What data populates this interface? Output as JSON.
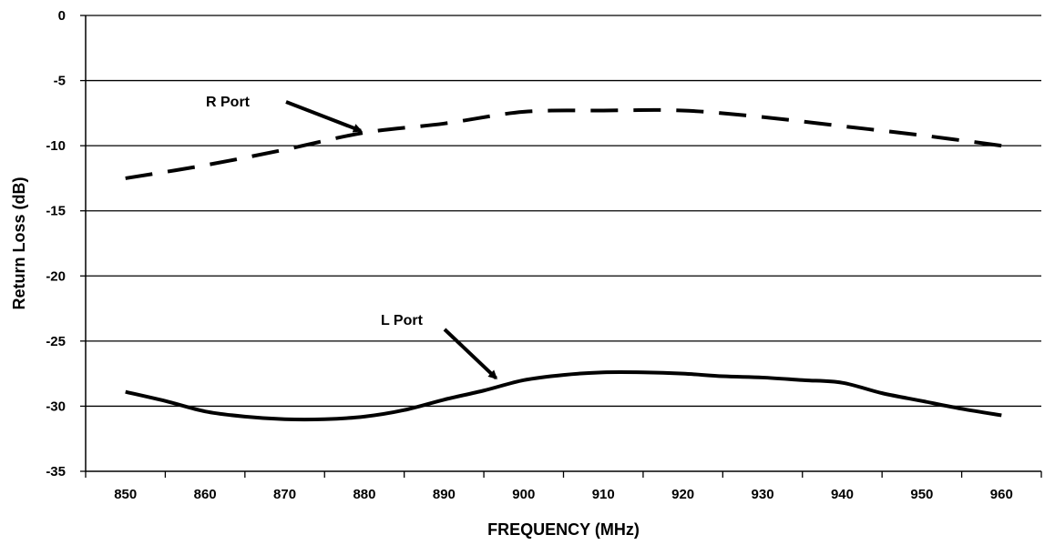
{
  "chart_data": {
    "type": "line",
    "title": "",
    "xlabel": "FREQUENCY (MHz)",
    "ylabel": "Return Loss (dB)",
    "xlim": [
      845,
      965
    ],
    "ylim": [
      -35,
      0
    ],
    "x_ticks": [
      850,
      860,
      870,
      880,
      890,
      900,
      910,
      920,
      930,
      940,
      950,
      960
    ],
    "y_ticks": [
      0,
      -5,
      -10,
      -15,
      -20,
      -25,
      -30,
      -35
    ],
    "grid": "horizontal",
    "legend": "none",
    "series": [
      {
        "name": "R Port",
        "style": "dashed",
        "color": "#000000",
        "x": [
          850,
          860,
          870,
          880,
          890,
          900,
          910,
          920,
          930,
          940,
          950,
          960
        ],
        "values": [
          -12.5,
          -11.5,
          -10.3,
          -9.0,
          -8.3,
          -7.4,
          -7.3,
          -7.3,
          -7.8,
          -8.5,
          -9.2,
          -10.0
        ]
      },
      {
        "name": "L Port",
        "style": "solid",
        "color": "#000000",
        "x": [
          850,
          855,
          860,
          865,
          870,
          875,
          880,
          885,
          890,
          895,
          900,
          905,
          910,
          915,
          920,
          925,
          930,
          935,
          940,
          945,
          950,
          955,
          960
        ],
        "values": [
          -28.9,
          -29.6,
          -30.4,
          -30.8,
          -31.0,
          -31.0,
          -30.8,
          -30.3,
          -29.5,
          -28.8,
          -28.0,
          -27.6,
          -27.4,
          -27.4,
          -27.5,
          -27.7,
          -27.8,
          -28.0,
          -28.2,
          -29.0,
          -29.6,
          -30.2,
          -30.7
        ]
      }
    ],
    "annotations": [
      {
        "text": "R Port",
        "target": "R Port",
        "target_x": 880,
        "target_y": -9.2
      },
      {
        "text": "L Port",
        "target": "L Port",
        "target_x": 897,
        "target_y": -28.2
      }
    ]
  }
}
